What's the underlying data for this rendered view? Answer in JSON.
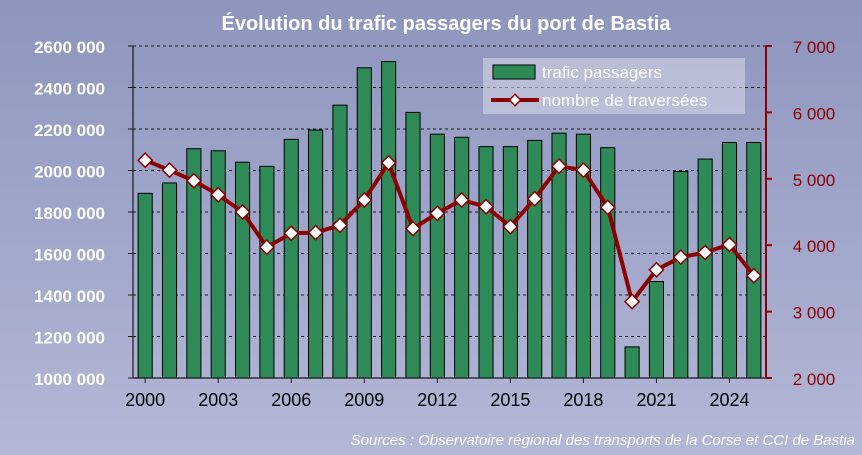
{
  "chart_data": {
    "type": "bar",
    "title": "Évolution du trafic passagers du port de Bastia",
    "source": "Sources : Observatoire régional des transports de la Corse et CCI de Bastia",
    "x": [
      2000,
      2001,
      2002,
      2003,
      2004,
      2005,
      2006,
      2007,
      2008,
      2009,
      2010,
      2011,
      2012,
      2013,
      2014,
      2015,
      2016,
      2017,
      2018,
      2019,
      2020,
      2021,
      2022,
      2023,
      2024,
      2025
    ],
    "x_tick_labels": [
      "2000",
      "2003",
      "2006",
      "2009",
      "2012",
      "2015",
      "2018",
      "2021",
      "2024"
    ],
    "left_axis": {
      "ylim": [
        1000000,
        2600000
      ],
      "tick_labels": [
        "1000 000",
        "1200 000",
        "1400 000",
        "1600 000",
        "1800 000",
        "2000 000",
        "2200 000",
        "2400 000",
        "2600 000"
      ]
    },
    "right_axis": {
      "ylim": [
        2000,
        7000
      ],
      "tick_labels": [
        "2 000",
        "3 000",
        "4 000",
        "5 000",
        "6 000",
        "7 000"
      ]
    },
    "series": [
      {
        "name": "trafic passagers",
        "kind": "bar",
        "axis": "left",
        "color": "#2e8b57",
        "values": [
          1890000,
          1940000,
          2105000,
          2095000,
          2040000,
          2020000,
          2150000,
          2195000,
          2315000,
          2495000,
          2525000,
          2280000,
          2175000,
          2160000,
          2115000,
          2115000,
          2145000,
          2180000,
          2175000,
          2110000,
          1150000,
          1465000,
          1995000,
          2055000,
          2135000,
          2135000
        ]
      },
      {
        "name": "nombre de traversées",
        "kind": "line",
        "axis": "right",
        "color": "#8b0000",
        "values": [
          5280,
          5130,
          4970,
          4760,
          4500,
          3970,
          4180,
          4190,
          4300,
          4680,
          5240,
          4250,
          4480,
          4680,
          4580,
          4280,
          4700,
          5190,
          5130,
          4570,
          3150,
          3630,
          3820,
          3890,
          4010,
          3540
        ]
      }
    ],
    "legend_position": "top-right",
    "grid": true
  }
}
